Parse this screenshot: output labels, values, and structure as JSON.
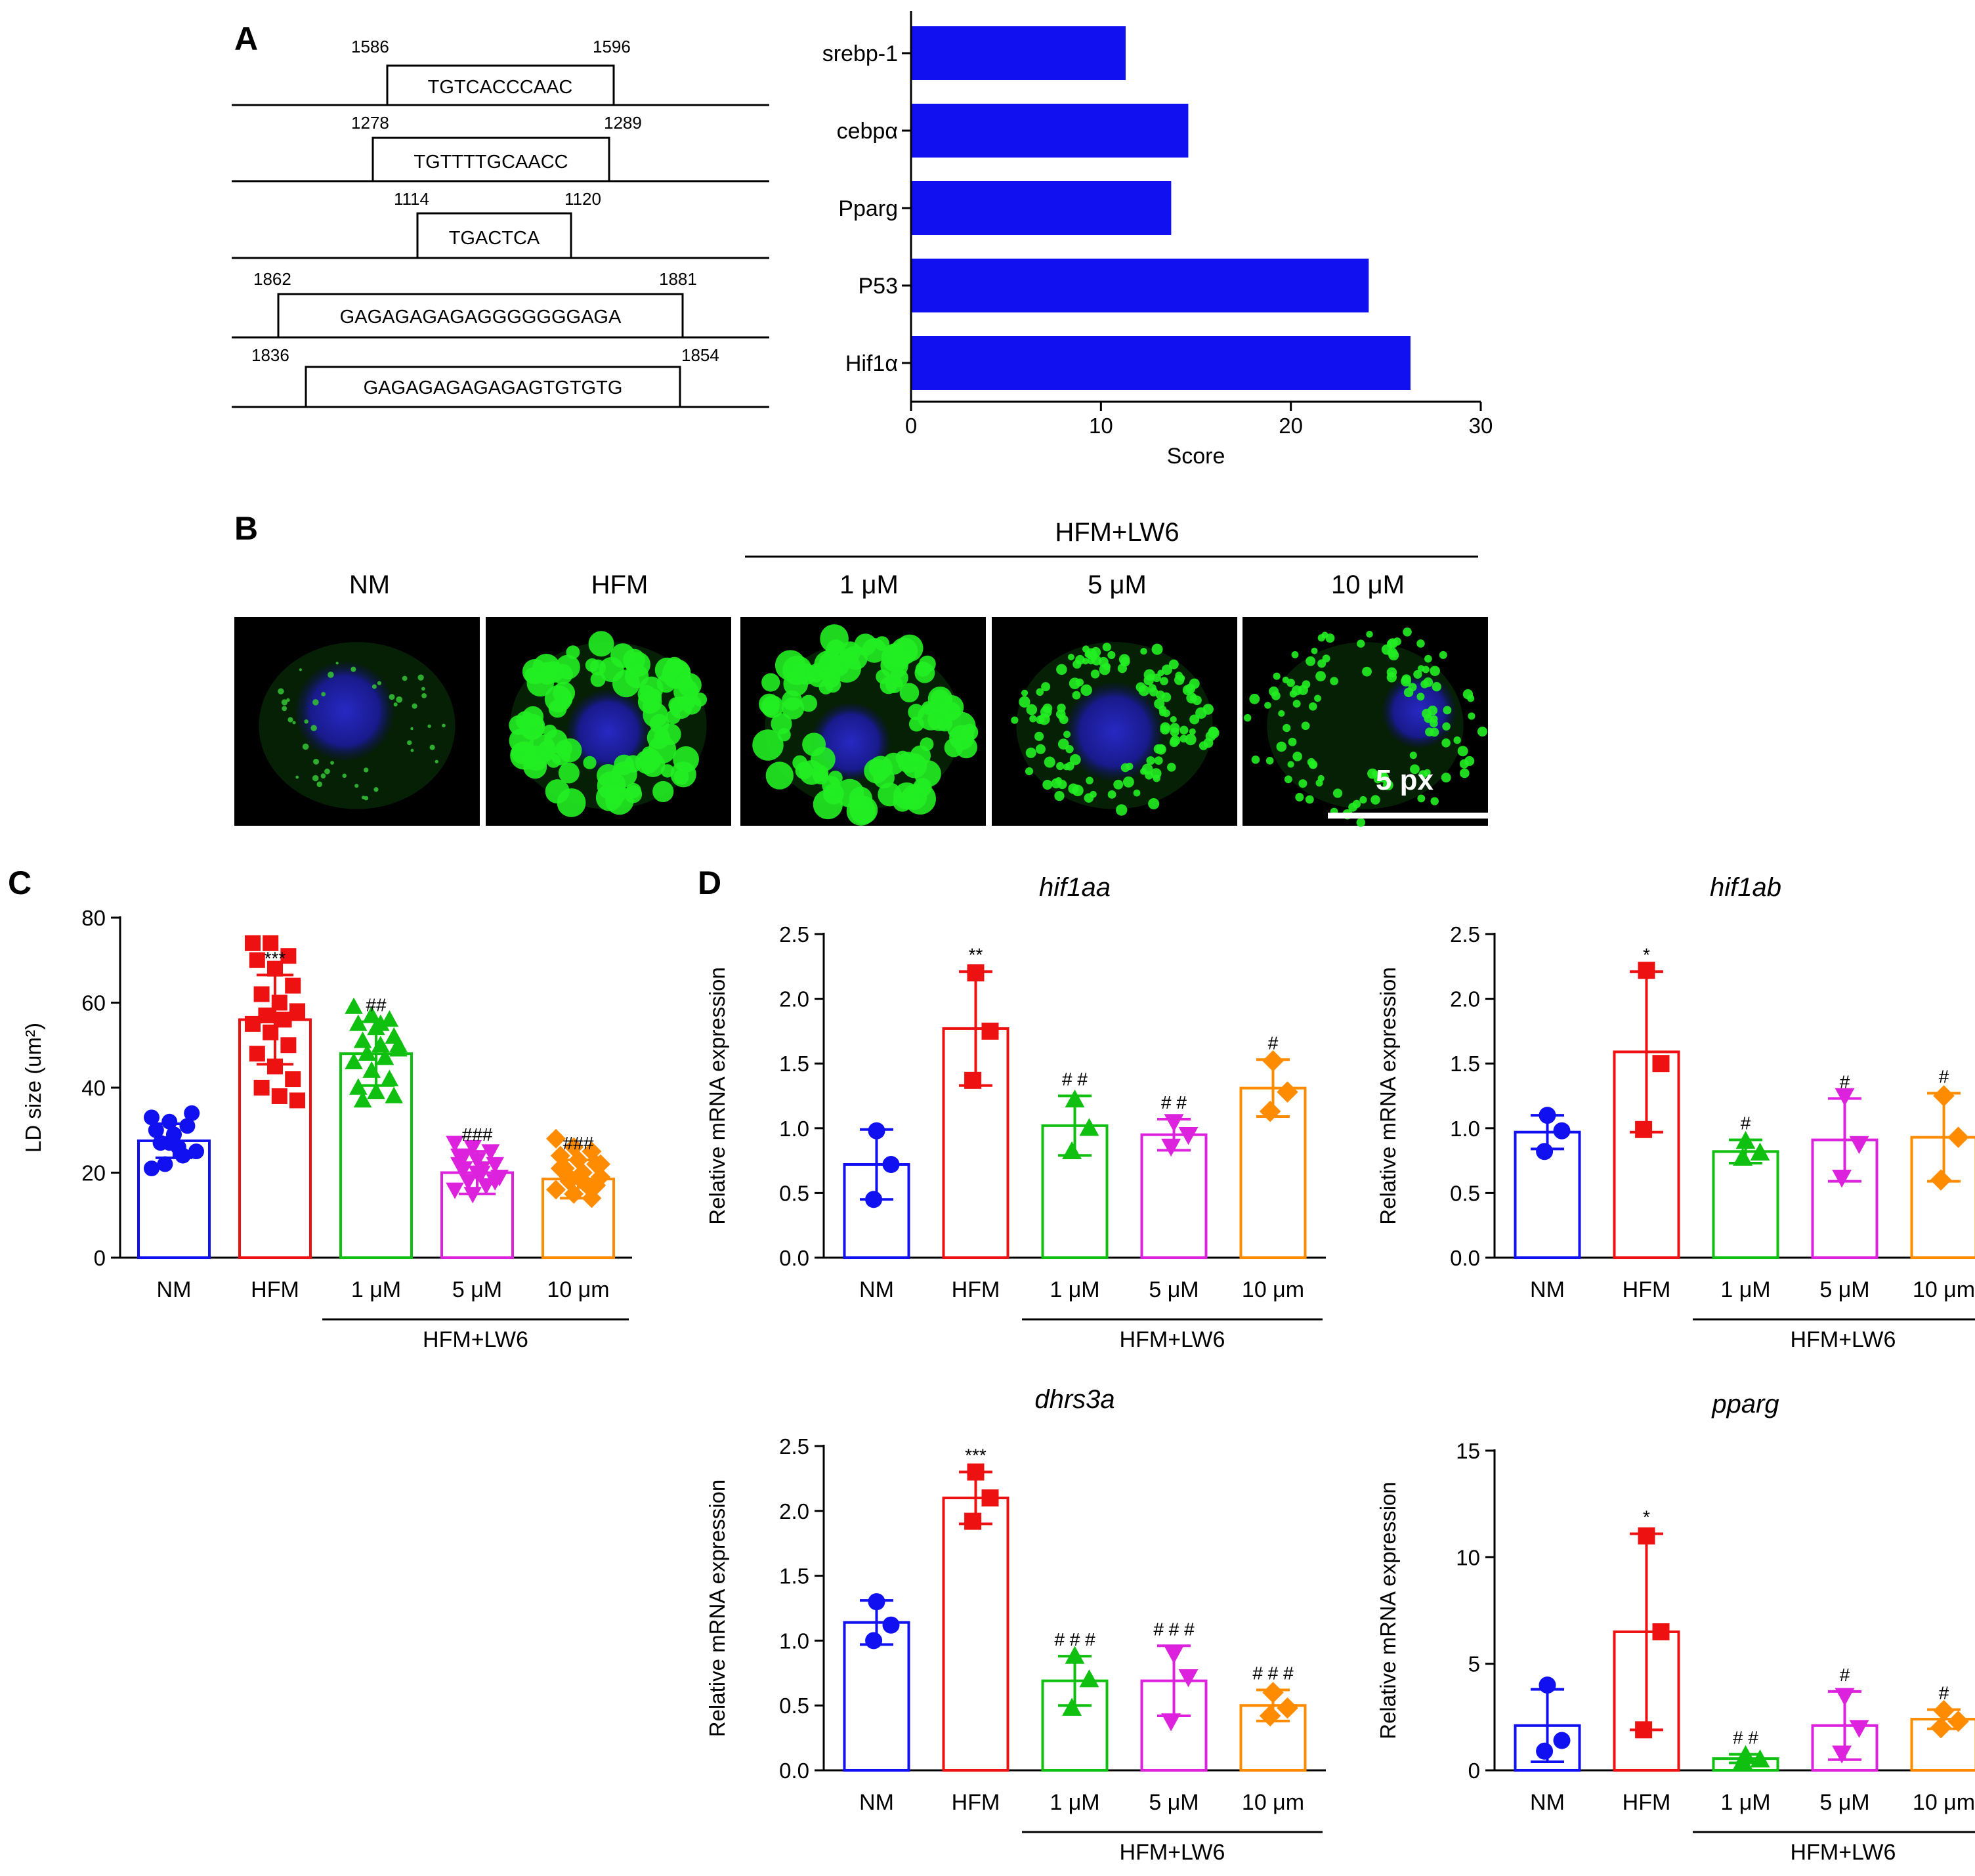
{
  "panels": {
    "a": "A",
    "b": "B",
    "c": "C",
    "d": "D"
  },
  "sequences": [
    {
      "start": "1586",
      "end": "1596",
      "seq": "TGTCACCCAAC"
    },
    {
      "start": "1278",
      "end": "1289",
      "seq": "TGTTTTGCAACC"
    },
    {
      "start": "1114",
      "end": "1120",
      "seq": "TGACTCA"
    },
    {
      "start": "1862",
      "end": "1881",
      "seq": "GAGAGAGAGAGGGGGGGAGA"
    },
    {
      "start": "1836",
      "end": "1854",
      "seq": "GAGAGAGAGAGAGTGTGTG"
    }
  ],
  "microscopy": {
    "group_label": "HFM+LW6",
    "labels": [
      "NM",
      "HFM",
      "1 μM",
      "5 μM",
      "10 μM"
    ],
    "scale_bar": "5 px"
  },
  "colors": {
    "blue": "#1010f0",
    "red": "#ee1111",
    "green": "#10c010",
    "magenta": "#dd22dd",
    "orange": "#ff8c00",
    "hbar": "#1010f0"
  },
  "chart_data": [
    {
      "id": "A-score",
      "type": "bar",
      "orientation": "horizontal",
      "categories": [
        "srebp-1",
        "cebpα",
        "Pparg",
        "P53",
        "Hif1α"
      ],
      "values": [
        11.3,
        14.6,
        13.7,
        24.1,
        26.3
      ],
      "xlabel": "Score",
      "xlim": [
        0,
        30
      ],
      "ticks": [
        "0",
        "10",
        "20",
        "30"
      ]
    },
    {
      "id": "C-ldsize",
      "type": "bar",
      "ylabel": "LD size (um²)",
      "ylim": [
        0,
        80
      ],
      "ticks": [
        "0",
        "20",
        "40",
        "60",
        "80"
      ],
      "categories": [
        "NM",
        "HFM",
        "1 μM",
        "5 μM",
        "10 μm"
      ],
      "group_label": "HFM+LW6",
      "means": [
        27.5,
        56,
        48,
        20,
        18.5
      ],
      "errors": [
        4,
        10.5,
        7.5,
        5,
        4.5
      ],
      "significance": [
        "",
        "***",
        "##",
        "###",
        "###"
      ],
      "points": [
        [
          33,
          32,
          31,
          30,
          29,
          34,
          27,
          26,
          25,
          22,
          24,
          21,
          27
        ],
        [
          74,
          74,
          71,
          70,
          68,
          64,
          62,
          60,
          58,
          57,
          56,
          55,
          53,
          50,
          48,
          45,
          42,
          40,
          38,
          37
        ],
        [
          59,
          57,
          56,
          55,
          54,
          52,
          51,
          50,
          49,
          48,
          47,
          46,
          44,
          42,
          40,
          39,
          38,
          37,
          55,
          50
        ],
        [
          27,
          26,
          25,
          24,
          23,
          22,
          21,
          20,
          19,
          18,
          17,
          16,
          15,
          25,
          22,
          20,
          18,
          24,
          21,
          19
        ],
        [
          28,
          26,
          25,
          24,
          23,
          22,
          21,
          20,
          19,
          18,
          17,
          16,
          15,
          14,
          21,
          19,
          17,
          20,
          18,
          22
        ]
      ]
    },
    {
      "id": "D-hif1aa",
      "type": "bar",
      "title": "hif1aa",
      "ylabel": "Relative mRNA expression",
      "ylim": [
        0,
        2.5
      ],
      "ticks": [
        "0.0",
        "0.5",
        "1.0",
        "1.5",
        "2.0",
        "2.5"
      ],
      "categories": [
        "NM",
        "HFM",
        "1 μM",
        "5 μM",
        "10 μm"
      ],
      "group_label": "HFM+LW6",
      "means": [
        0.72,
        1.77,
        1.02,
        0.95,
        1.31
      ],
      "errors": [
        0.27,
        0.44,
        0.23,
        0.12,
        0.22
      ],
      "significance": [
        "",
        "**",
        "# #",
        "# #",
        "#"
      ],
      "points": [
        [
          0.98,
          0.72,
          0.45
        ],
        [
          2.2,
          1.75,
          1.37
        ],
        [
          1.22,
          1.0,
          0.82
        ],
        [
          1.05,
          0.95,
          0.86
        ],
        [
          1.52,
          1.28,
          1.13
        ]
      ]
    },
    {
      "id": "D-hif1ab",
      "type": "bar",
      "title": "hif1ab",
      "ylabel": "Relative mRNA expression",
      "ylim": [
        0,
        2.5
      ],
      "ticks": [
        "0.0",
        "0.5",
        "1.0",
        "1.5",
        "2.0",
        "2.5"
      ],
      "categories": [
        "NM",
        "HFM",
        "1 μM",
        "5 μM",
        "10 μm"
      ],
      "group_label": "HFM+LW6",
      "means": [
        0.97,
        1.59,
        0.82,
        0.91,
        0.93
      ],
      "errors": [
        0.13,
        0.62,
        0.09,
        0.32,
        0.34
      ],
      "significance": [
        "",
        "*",
        "#",
        "#",
        "#"
      ],
      "points": [
        [
          1.1,
          0.98,
          0.82
        ],
        [
          2.22,
          1.5,
          0.99
        ],
        [
          0.9,
          0.81,
          0.77
        ],
        [
          1.25,
          0.88,
          0.62
        ],
        [
          1.25,
          0.93,
          0.6
        ]
      ]
    },
    {
      "id": "D-dhrs3a",
      "type": "bar",
      "title": "dhrs3a",
      "ylabel": "Relative mRNA expression",
      "ylim": [
        0,
        2.5
      ],
      "ticks": [
        "0.0",
        "0.5",
        "1.0",
        "1.5",
        "2.0",
        "2.5"
      ],
      "categories": [
        "NM",
        "HFM",
        "1 μM",
        "5 μM",
        "10 μm"
      ],
      "group_label": "HFM+LW6",
      "means": [
        1.14,
        2.1,
        0.69,
        0.69,
        0.5
      ],
      "errors": [
        0.17,
        0.2,
        0.19,
        0.27,
        0.12
      ],
      "significance": [
        "",
        "***",
        "# # #",
        "# # #",
        "# # #"
      ],
      "points": [
        [
          1.3,
          1.12,
          1.0
        ],
        [
          2.3,
          2.1,
          1.92
        ],
        [
          0.88,
          0.7,
          0.48
        ],
        [
          0.9,
          0.72,
          0.38
        ],
        [
          0.6,
          0.48,
          0.42
        ]
      ]
    },
    {
      "id": "D-pparg",
      "type": "bar",
      "title": "pparg",
      "ylabel": "Relative mRNA expression",
      "ylim": [
        0,
        15
      ],
      "ticks": [
        "0",
        "5",
        "10",
        "15"
      ],
      "categories": [
        "NM",
        "HFM",
        "1 μM",
        "5 μM",
        "10 μm"
      ],
      "group_label": "HFM+LW6",
      "means": [
        2.1,
        6.5,
        0.55,
        2.1,
        2.4
      ],
      "errors": [
        1.7,
        4.6,
        0.2,
        1.6,
        0.45
      ],
      "significance": [
        "",
        "*",
        "# #",
        "#",
        "#"
      ],
      "points": [
        [
          4.0,
          1.4,
          0.9
        ],
        [
          11.0,
          6.5,
          1.9
        ],
        [
          0.7,
          0.5,
          0.4
        ],
        [
          3.5,
          2.0,
          0.8
        ],
        [
          2.8,
          2.3,
          2.0
        ]
      ]
    }
  ]
}
